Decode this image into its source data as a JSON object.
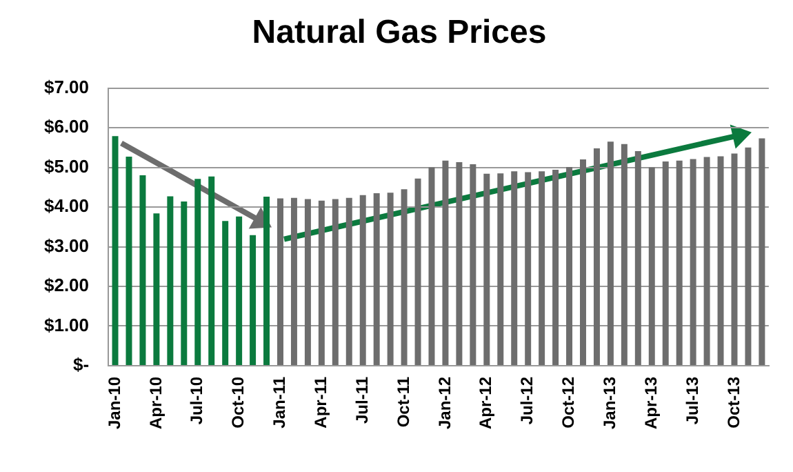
{
  "chart_data": {
    "type": "bar",
    "title": "Natural Gas Prices",
    "categories": [
      "Jan-10",
      null,
      null,
      "Apr-10",
      null,
      null,
      "Jul-10",
      null,
      null,
      "Oct-10",
      null,
      null,
      "Jan-11",
      null,
      null,
      "Apr-11",
      null,
      null,
      "Jul-11",
      null,
      null,
      "Oct-11",
      null,
      null,
      "Jan-12",
      null,
      null,
      "Apr-12",
      null,
      null,
      "Jul-12",
      null,
      null,
      "Oct-12",
      null,
      null,
      "Jan-13",
      null,
      null,
      "Apr-13",
      null,
      null,
      "Jul-13",
      null,
      null,
      "Oct-13",
      null,
      null
    ],
    "values": [
      5.79,
      5.27,
      4.8,
      3.84,
      4.27,
      4.14,
      4.71,
      4.77,
      3.65,
      3.76,
      3.29,
      4.26,
      4.22,
      4.23,
      4.2,
      4.16,
      4.2,
      4.23,
      4.3,
      4.35,
      4.36,
      4.45,
      4.72,
      5.0,
      5.17,
      5.13,
      5.08,
      4.84,
      4.85,
      4.9,
      4.88,
      4.9,
      4.94,
      5.01,
      5.2,
      5.48,
      5.65,
      5.59,
      5.41,
      5.0,
      5.15,
      5.17,
      5.21,
      5.26,
      5.28,
      5.35,
      5.5,
      5.73
    ],
    "colors": [
      "#0b7a3e",
      "#0b7a3e",
      "#0b7a3e",
      "#0b7a3e",
      "#0b7a3e",
      "#0b7a3e",
      "#0b7a3e",
      "#0b7a3e",
      "#0b7a3e",
      "#0b7a3e",
      "#0b7a3e",
      "#0b7a3e",
      "#6d6d6d",
      "#6d6d6d",
      "#6d6d6d",
      "#6d6d6d",
      "#6d6d6d",
      "#6d6d6d",
      "#6d6d6d",
      "#6d6d6d",
      "#6d6d6d",
      "#6d6d6d",
      "#6d6d6d",
      "#6d6d6d",
      "#6d6d6d",
      "#6d6d6d",
      "#6d6d6d",
      "#6d6d6d",
      "#6d6d6d",
      "#6d6d6d",
      "#6d6d6d",
      "#6d6d6d",
      "#6d6d6d",
      "#6d6d6d",
      "#6d6d6d",
      "#6d6d6d",
      "#6d6d6d",
      "#6d6d6d",
      "#6d6d6d",
      "#6d6d6d",
      "#6d6d6d",
      "#6d6d6d",
      "#6d6d6d",
      "#6d6d6d",
      "#6d6d6d",
      "#6d6d6d",
      "#6d6d6d",
      "#6d6d6d"
    ],
    "ylim": [
      0,
      7
    ],
    "yticks": [
      {
        "value": 0,
        "label": "$-"
      },
      {
        "value": 1,
        "label": "$1.00"
      },
      {
        "value": 2,
        "label": "$2.00"
      },
      {
        "value": 3,
        "label": "$3.00"
      },
      {
        "value": 4,
        "label": "$4.00"
      },
      {
        "value": 5,
        "label": "$5.00"
      },
      {
        "value": 6,
        "label": "$6.00"
      },
      {
        "value": 7,
        "label": "$7.00"
      }
    ],
    "grid": "y",
    "legend": false
  }
}
